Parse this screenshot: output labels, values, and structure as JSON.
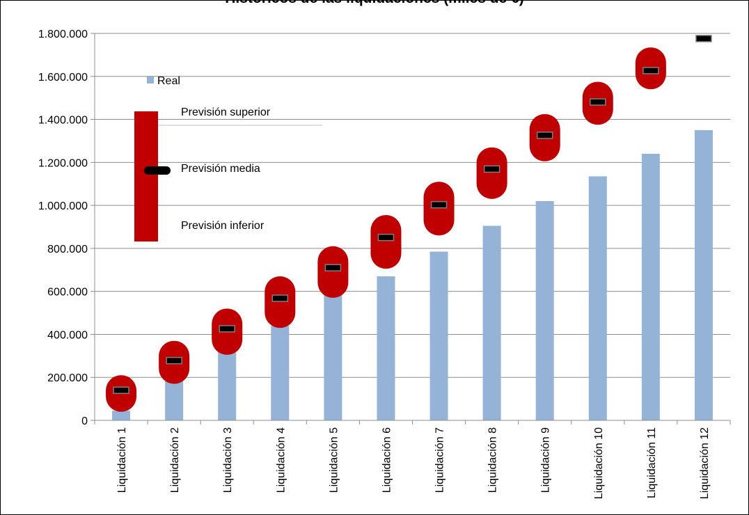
{
  "chart_data": {
    "type": "bar",
    "title": "Históricos de las liquidaciones (miles de €)",
    "categories": [
      "Liquidación 1",
      "Liquidación 2",
      "Liquidación 3",
      "Liquidación 4",
      "Liquidación 5",
      "Liquidación 6",
      "Liquidación 7",
      "Liquidación 8",
      "Liquidación 9",
      "Liquidación 10",
      "Liquidación 11",
      "Liquidación 12"
    ],
    "ylim": [
      0,
      1800000
    ],
    "yticks": [
      "0",
      "200.000",
      "400.000",
      "600.000",
      "800.000",
      "1.000.000",
      "1.200.000",
      "1.400.000",
      "1.600.000",
      "1.800.000"
    ],
    "grid": true,
    "series": [
      {
        "name": "Real",
        "type": "bar",
        "color": "#95b3d7",
        "values": [
          45000,
          185000,
          320000,
          440000,
          585000,
          670000,
          785000,
          905000,
          1020000,
          1135000,
          1240000,
          1350000
        ]
      },
      {
        "type": "range",
        "color": "#c00000",
        "upper": [
          210000,
          370000,
          520000,
          670000,
          810000,
          955000,
          1110000,
          1270000,
          1425000,
          1575000,
          1735000,
          null
        ],
        "mean": [
          140000,
          278000,
          426000,
          568000,
          710000,
          851000,
          1003000,
          1169000,
          1326000,
          1481000,
          1627000,
          1776000
        ],
        "lower": [
          40000,
          170000,
          305000,
          430000,
          570000,
          705000,
          860000,
          1030000,
          1205000,
          1375000,
          1540000,
          null
        ]
      }
    ],
    "legend": {
      "placement": "top-left",
      "real_label": "Real",
      "upper_label": "Previsión superior",
      "mean_label": "Previsión media",
      "lower_label": "Previsión inferior"
    }
  }
}
